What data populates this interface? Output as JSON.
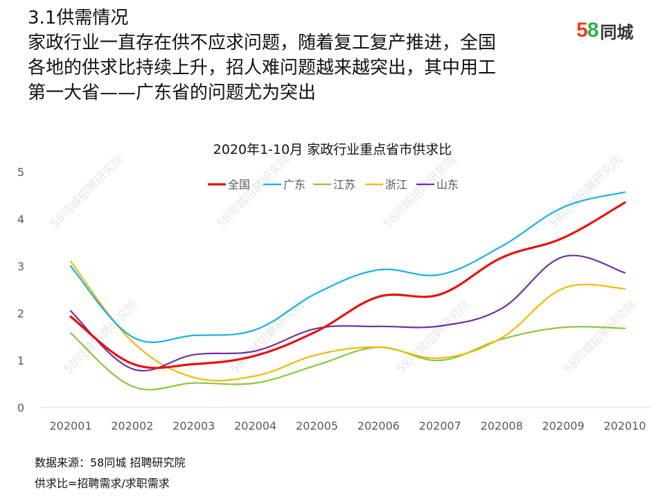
{
  "heading": {
    "section": "3.1供需情况",
    "line1": "家政行业一直存在供不应求问题，随着复工复产推进，全国",
    "line2": "各地的供求比持续上升，招人难问题越来越突出，其中用工",
    "line3": "第一大省——广东省的问题尤为突出"
  },
  "logo": {
    "digit1": "5",
    "digit2": "8",
    "text": "同城"
  },
  "colors": {
    "全国": "#e8120c",
    "广东": "#1ab0e8",
    "江苏": "#8cc63f",
    "浙江": "#f5b800",
    "山东": "#7030a0"
  },
  "watermark": "58同城招聘研究院",
  "chart_data": {
    "type": "line",
    "title": "2020年1-10月 家政行业重点省市供求比",
    "categories": [
      "202001",
      "202002",
      "202003",
      "202004",
      "202005",
      "202006",
      "202007",
      "202008",
      "202009",
      "202010"
    ],
    "ylim": [
      0,
      5
    ],
    "yticks": [
      "0",
      "1",
      "2",
      "3",
      "4",
      "5"
    ],
    "legend_position": "top",
    "series": [
      {
        "name": "全国",
        "values": [
          1.93,
          0.93,
          0.92,
          1.1,
          1.62,
          2.35,
          2.4,
          3.18,
          3.6,
          4.35
        ]
      },
      {
        "name": "广东",
        "values": [
          3.0,
          1.5,
          1.53,
          1.65,
          2.43,
          2.92,
          2.82,
          3.42,
          4.25,
          4.57
        ]
      },
      {
        "name": "江苏",
        "values": [
          1.58,
          0.45,
          0.52,
          0.52,
          0.9,
          1.28,
          1.0,
          1.45,
          1.7,
          1.68
        ]
      },
      {
        "name": "浙江",
        "values": [
          3.1,
          1.4,
          0.64,
          0.67,
          1.12,
          1.28,
          1.05,
          1.48,
          2.53,
          2.52
        ]
      },
      {
        "name": "山东",
        "values": [
          2.05,
          0.82,
          1.12,
          1.2,
          1.68,
          1.72,
          1.73,
          2.1,
          3.2,
          2.86
        ]
      }
    ]
  },
  "footnotes": {
    "source": "数据来源：58同城 招聘研究院",
    "definition": "供求比=招聘需求/求职需求"
  }
}
